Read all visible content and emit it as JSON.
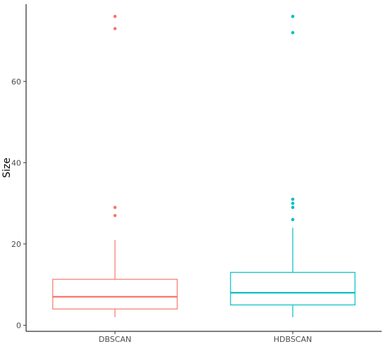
{
  "chart_data": {
    "type": "boxplot",
    "title": "",
    "xlabel": "",
    "ylabel": "Size",
    "ylim": [
      -1.5,
      79
    ],
    "yticks": [
      0,
      20,
      40,
      60
    ],
    "grid": false,
    "legend": "none",
    "categories": [
      "DBSCAN",
      "HDBSCAN"
    ],
    "series": [
      {
        "category": "DBSCAN",
        "color": "#F8766D",
        "min": 2,
        "q1": 4,
        "median": 7,
        "q3": 11.3,
        "max": 21,
        "outliers": [
          27,
          29,
          73,
          76
        ]
      },
      {
        "category": "HDBSCAN",
        "color": "#00BFC4",
        "min": 2,
        "q1": 5,
        "median": 8,
        "q3": 13,
        "max": 24,
        "outliers": [
          26,
          29,
          30,
          31,
          72,
          76
        ]
      }
    ]
  }
}
